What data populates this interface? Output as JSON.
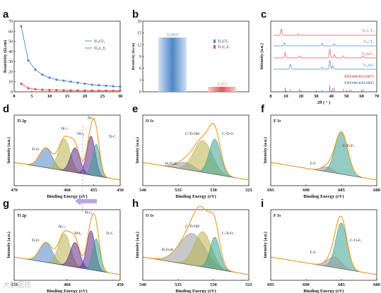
{
  "panels": {
    "a": "a",
    "b": "b",
    "c": "c",
    "d": "d",
    "e": "e",
    "f": "f",
    "g": "g",
    "h": "h",
    "i": "i"
  },
  "watermark": "大数据视",
  "colors": {
    "blue": "#4f86c6",
    "red": "#e05454",
    "purple": "#5e2a8c",
    "olive": "#b8b44a",
    "teal": "#3aa38f",
    "gray": "#9a9a9a",
    "orange": "#f0a030"
  },
  "chart_data": [
    {
      "id": "a",
      "type": "line",
      "xlabel": "",
      "ylabel": "Resistivity (Ω.cm)",
      "xlim": [
        0,
        30
      ],
      "ylim": [
        0,
        70
      ],
      "xticks": [
        0,
        5,
        10,
        15,
        20,
        25,
        30
      ],
      "yticks": [
        0,
        10,
        20,
        30,
        40,
        50,
        60,
        70
      ],
      "x": [
        2,
        4,
        6,
        8,
        10,
        12,
        14,
        16,
        18,
        20,
        22,
        24,
        26,
        28,
        30
      ],
      "series": [
        {
          "name": "Ti₃CT₂",
          "values": [
            65,
            31,
            22,
            17,
            14,
            12,
            11,
            10,
            9,
            8,
            7,
            6.5,
            6,
            5.5,
            5
          ]
        },
        {
          "name": "Ti₃C₂Tₓ",
          "values": [
            8,
            3.5,
            2.5,
            2,
            1.8,
            1.6,
            1.5,
            1.4,
            1.3,
            1.2,
            1.2,
            1.1,
            1.1,
            1.0,
            1.0
          ]
        }
      ]
    },
    {
      "id": "b",
      "type": "bar",
      "ylabel": "Resistivity (Ω.cm)",
      "ylim": [
        0,
        18
      ],
      "yticks": [
        0,
        3,
        6,
        9,
        12,
        15,
        18
      ],
      "categories": [
        "Ti₃CT₂",
        "Ti₃C₂Tₓ"
      ],
      "values": [
        13.819,
        1.271
      ],
      "value_labels": [
        "13.819",
        "1.271"
      ],
      "legend": [
        "Ti₃CT₂",
        "Ti₃C₂Tₓ"
      ]
    },
    {
      "id": "c",
      "type": "line",
      "xlabel": "2θ ( ° )",
      "ylabel": "Intensity (a.u.)",
      "xlim": [
        0,
        70
      ],
      "xticks": [
        0,
        10,
        20,
        30,
        40,
        50,
        60,
        70
      ],
      "traces": [
        "Ti₃C₂Tₓ",
        "Ti₃CT₂",
        "Ti₃AlC₂",
        "Ti₂AlC",
        "PDF#00-052-0875",
        "PDF#00-029-0095"
      ]
    },
    {
      "id": "d",
      "type": "line",
      "title": "Ti 2p",
      "xlabel": "Binding Energy (eV)",
      "ylabel": "Intensity (a.u.)",
      "xlim": [
        470,
        450
      ],
      "xticks": [
        470,
        460,
        455,
        450
      ],
      "annotations": [
        "2p₃/₂",
        "2p₁/₂",
        "TiO₂",
        "Ti-O",
        "Ti-C"
      ]
    },
    {
      "id": "e",
      "type": "line",
      "title": "O 1s",
      "xlabel": "Binding Energy (eV)",
      "ylabel": "Intensity (a.u.)",
      "xlim": [
        540,
        525
      ],
      "xticks": [
        540,
        535,
        530,
        525
      ],
      "annotations": [
        "C-Ti-OH",
        "C-Ti-O",
        "H₂Oₐds"
      ]
    },
    {
      "id": "f",
      "type": "line",
      "title": "F 1s",
      "xlabel": "Binding Energy (eV)",
      "ylabel": "Intensity (a.u.)",
      "xlim": [
        695,
        680
      ],
      "xticks": [
        695,
        690,
        685,
        680
      ],
      "annotations": [
        "F-C",
        "C-Ti-Fₓ"
      ]
    },
    {
      "id": "g",
      "type": "line",
      "title": "Ti 2p",
      "xlabel": "Binding Energy (eV)",
      "ylabel": "Intensity (a.u.)",
      "xlim": [
        470,
        450
      ],
      "xticks": [
        470,
        460,
        450
      ],
      "annotations": [
        "2p₃/₂",
        "2p₁/₂",
        "TiO₂",
        "Ti-O",
        "Ti-C"
      ]
    },
    {
      "id": "h",
      "type": "line",
      "title": "O 1s",
      "xlabel": "Binding Energy (eV)",
      "ylabel": "Intensity (a.u.)",
      "xlim": [
        540,
        525
      ],
      "xticks": [
        540,
        535,
        530,
        525
      ],
      "annotations": [
        "C-Ti-OH",
        "C-Ti-O",
        "H₂Oₐds"
      ]
    },
    {
      "id": "i",
      "type": "line",
      "title": "F 1s",
      "xlabel": "Binding Energy (eV)",
      "ylabel": "Intensity (a.u.)",
      "xlim": [
        695,
        680
      ],
      "xticks": [
        695,
        690,
        685,
        680
      ],
      "annotations": [
        "F-C",
        "C-Ti-Fₓ"
      ]
    }
  ]
}
